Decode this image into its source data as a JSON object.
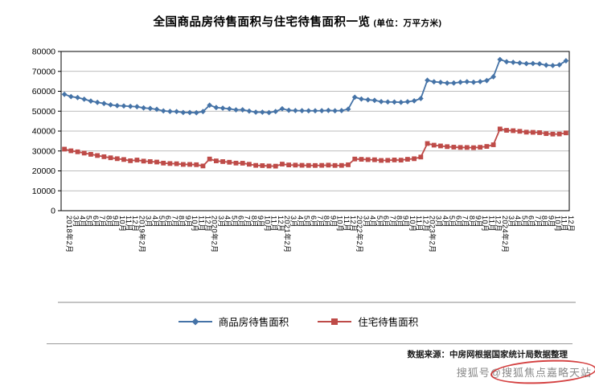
{
  "title": {
    "main": "全国商品房待售面积与住宅待售面积一览",
    "unit": "(单位：万平方米)"
  },
  "source": "数据来源：中房网根据国家统计局数据整理",
  "watermark": "搜狐号@搜狐焦点嘉略天站",
  "chart_data": {
    "type": "line",
    "title": "全国商品房待售面积与住宅待售面积一览",
    "unit": "万平方米",
    "ylim": [
      0,
      80000
    ],
    "ytick_step": 10000,
    "grid": true,
    "legend_position": "bottom",
    "categories": [
      "2018年2月",
      "3月",
      "4月",
      "5月",
      "6月",
      "7月",
      "8月",
      "9月",
      "10月",
      "11月",
      "12月",
      "2019年2月",
      "3月",
      "4月",
      "5月",
      "6月",
      "7月",
      "8月",
      "9月",
      "10月",
      "11月",
      "12月",
      "2020年2月",
      "3月",
      "4月",
      "5月",
      "6月",
      "7月",
      "8月",
      "9月",
      "10月",
      "11月",
      "12月",
      "2021年2月",
      "3月",
      "4月",
      "5月",
      "6月",
      "7月",
      "8月",
      "9月",
      "10月",
      "11月",
      "12月",
      "2022年2月",
      "3月",
      "4月",
      "5月",
      "6月",
      "7月",
      "8月",
      "9月",
      "10月",
      "11月",
      "12月",
      "2023年2月",
      "3月",
      "4月",
      "5月",
      "6月",
      "7月",
      "8月",
      "9月",
      "10月",
      "11月",
      "12月",
      "2024年2月",
      "3月",
      "4月",
      "5月",
      "6月",
      "7月",
      "8月",
      "9月",
      "10月",
      "11月",
      "12月"
    ],
    "series": [
      {
        "name": "商品房待售面积",
        "color": "#4573A7",
        "marker": "diamond",
        "values": [
          58468,
          57329,
          56841,
          56010,
          55083,
          54428,
          53873,
          53191,
          52789,
          52627,
          52414,
          52251,
          51646,
          51380,
          50928,
          50162,
          49876,
          49784,
          49346,
          49323,
          49221,
          49821,
          53004,
          51837,
          51507,
          51184,
          50662,
          50682,
          50052,
          49499,
          49492,
          49287,
          49850,
          51208,
          50468,
          50305,
          50257,
          50211,
          50212,
          50241,
          50385,
          50214,
          50291,
          51023,
          57026,
          56113,
          55735,
          55433,
          54784,
          54655,
          54605,
          54467,
          54734,
          55203,
          56366,
          65528,
          64770,
          64487,
          64120,
          64159,
          64564,
          64795,
          64537,
          64835,
          65385,
          67295,
          75969,
          74833,
          74553,
          74256,
          73894,
          73926,
          73783,
          73113,
          72920,
          73286,
          75327
        ]
      },
      {
        "name": "住宅待售面积",
        "color": "#BE4B48",
        "marker": "square",
        "values": [
          30932,
          30100,
          29580,
          28940,
          28320,
          27710,
          27120,
          26580,
          26130,
          25720,
          25091,
          25460,
          24913,
          24691,
          24436,
          23903,
          23698,
          23590,
          23255,
          23253,
          23105,
          22473,
          25974,
          25020,
          24676,
          24343,
          23906,
          23854,
          23326,
          22769,
          22655,
          22448,
          22379,
          23412,
          22986,
          22898,
          22808,
          22740,
          22714,
          22778,
          22892,
          22721,
          22754,
          23064,
          25966,
          25825,
          25661,
          25591,
          25249,
          25315,
          25491,
          25401,
          25835,
          26115,
          26947,
          33752,
          32930,
          32537,
          32184,
          31932,
          31793,
          31763,
          31662,
          31872,
          32294,
          33119,
          41069,
          40386,
          40194,
          39894,
          39459,
          39374,
          39235,
          38713,
          38481,
          38525,
          39088
        ]
      }
    ]
  }
}
